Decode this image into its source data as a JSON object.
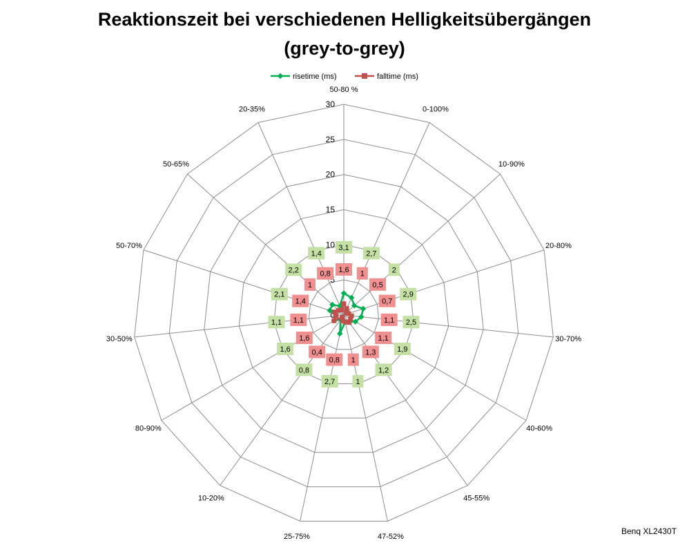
{
  "chart_data": {
    "type": "radar",
    "title": "Reaktionszeit bei verschiedenen Helligkeitsübergängen",
    "subtitle": "(grey-to-grey)",
    "categories": [
      "50-80 %",
      "0-100%",
      "10-90%",
      "20-80%",
      "30-70%",
      "40-60%",
      "45-55%",
      "47-52%",
      "25-75%",
      "10-20%",
      "80-90%",
      "30-50%",
      "50-70%",
      "50-65%",
      "20-35%"
    ],
    "ticks": [
      0,
      5,
      10,
      15,
      20,
      25,
      30
    ],
    "rlim": [
      0,
      30
    ],
    "grid": true,
    "legend_position": "top",
    "series": [
      {
        "name": "risetime (ms)",
        "color": "#00b050",
        "label_bg": "#c4e0a4",
        "values": [
          3.1,
          2.7,
          2,
          2.9,
          2.5,
          1.9,
          1.2,
          1,
          2.7,
          0.8,
          1.6,
          1.1,
          2.1,
          2.2,
          1.4
        ],
        "labels": [
          "3,1",
          "2,7",
          "2",
          "2,9",
          "2,5",
          "1,9",
          "1,2",
          "1",
          "2,7",
          "0,8",
          "1,6",
          "1,1",
          "2,1",
          "2,2",
          "1,4"
        ]
      },
      {
        "name": "falltime (ms)",
        "color": "#c0504d",
        "label_bg": "#f08f8f",
        "values": [
          1.6,
          1,
          0.5,
          0.7,
          1.1,
          1.1,
          1.3,
          1,
          0.8,
          0.4,
          1.6,
          1.1,
          1.4,
          1,
          0.8
        ],
        "labels": [
          "1,6",
          "1",
          "0,5",
          "0,7",
          "1,1",
          "1,1",
          "1,3",
          "1",
          "0,8",
          "0,4",
          "1,6",
          "1,1",
          "1,4",
          "1",
          "0,8"
        ]
      }
    ]
  },
  "credit": "Benq XL2430T"
}
